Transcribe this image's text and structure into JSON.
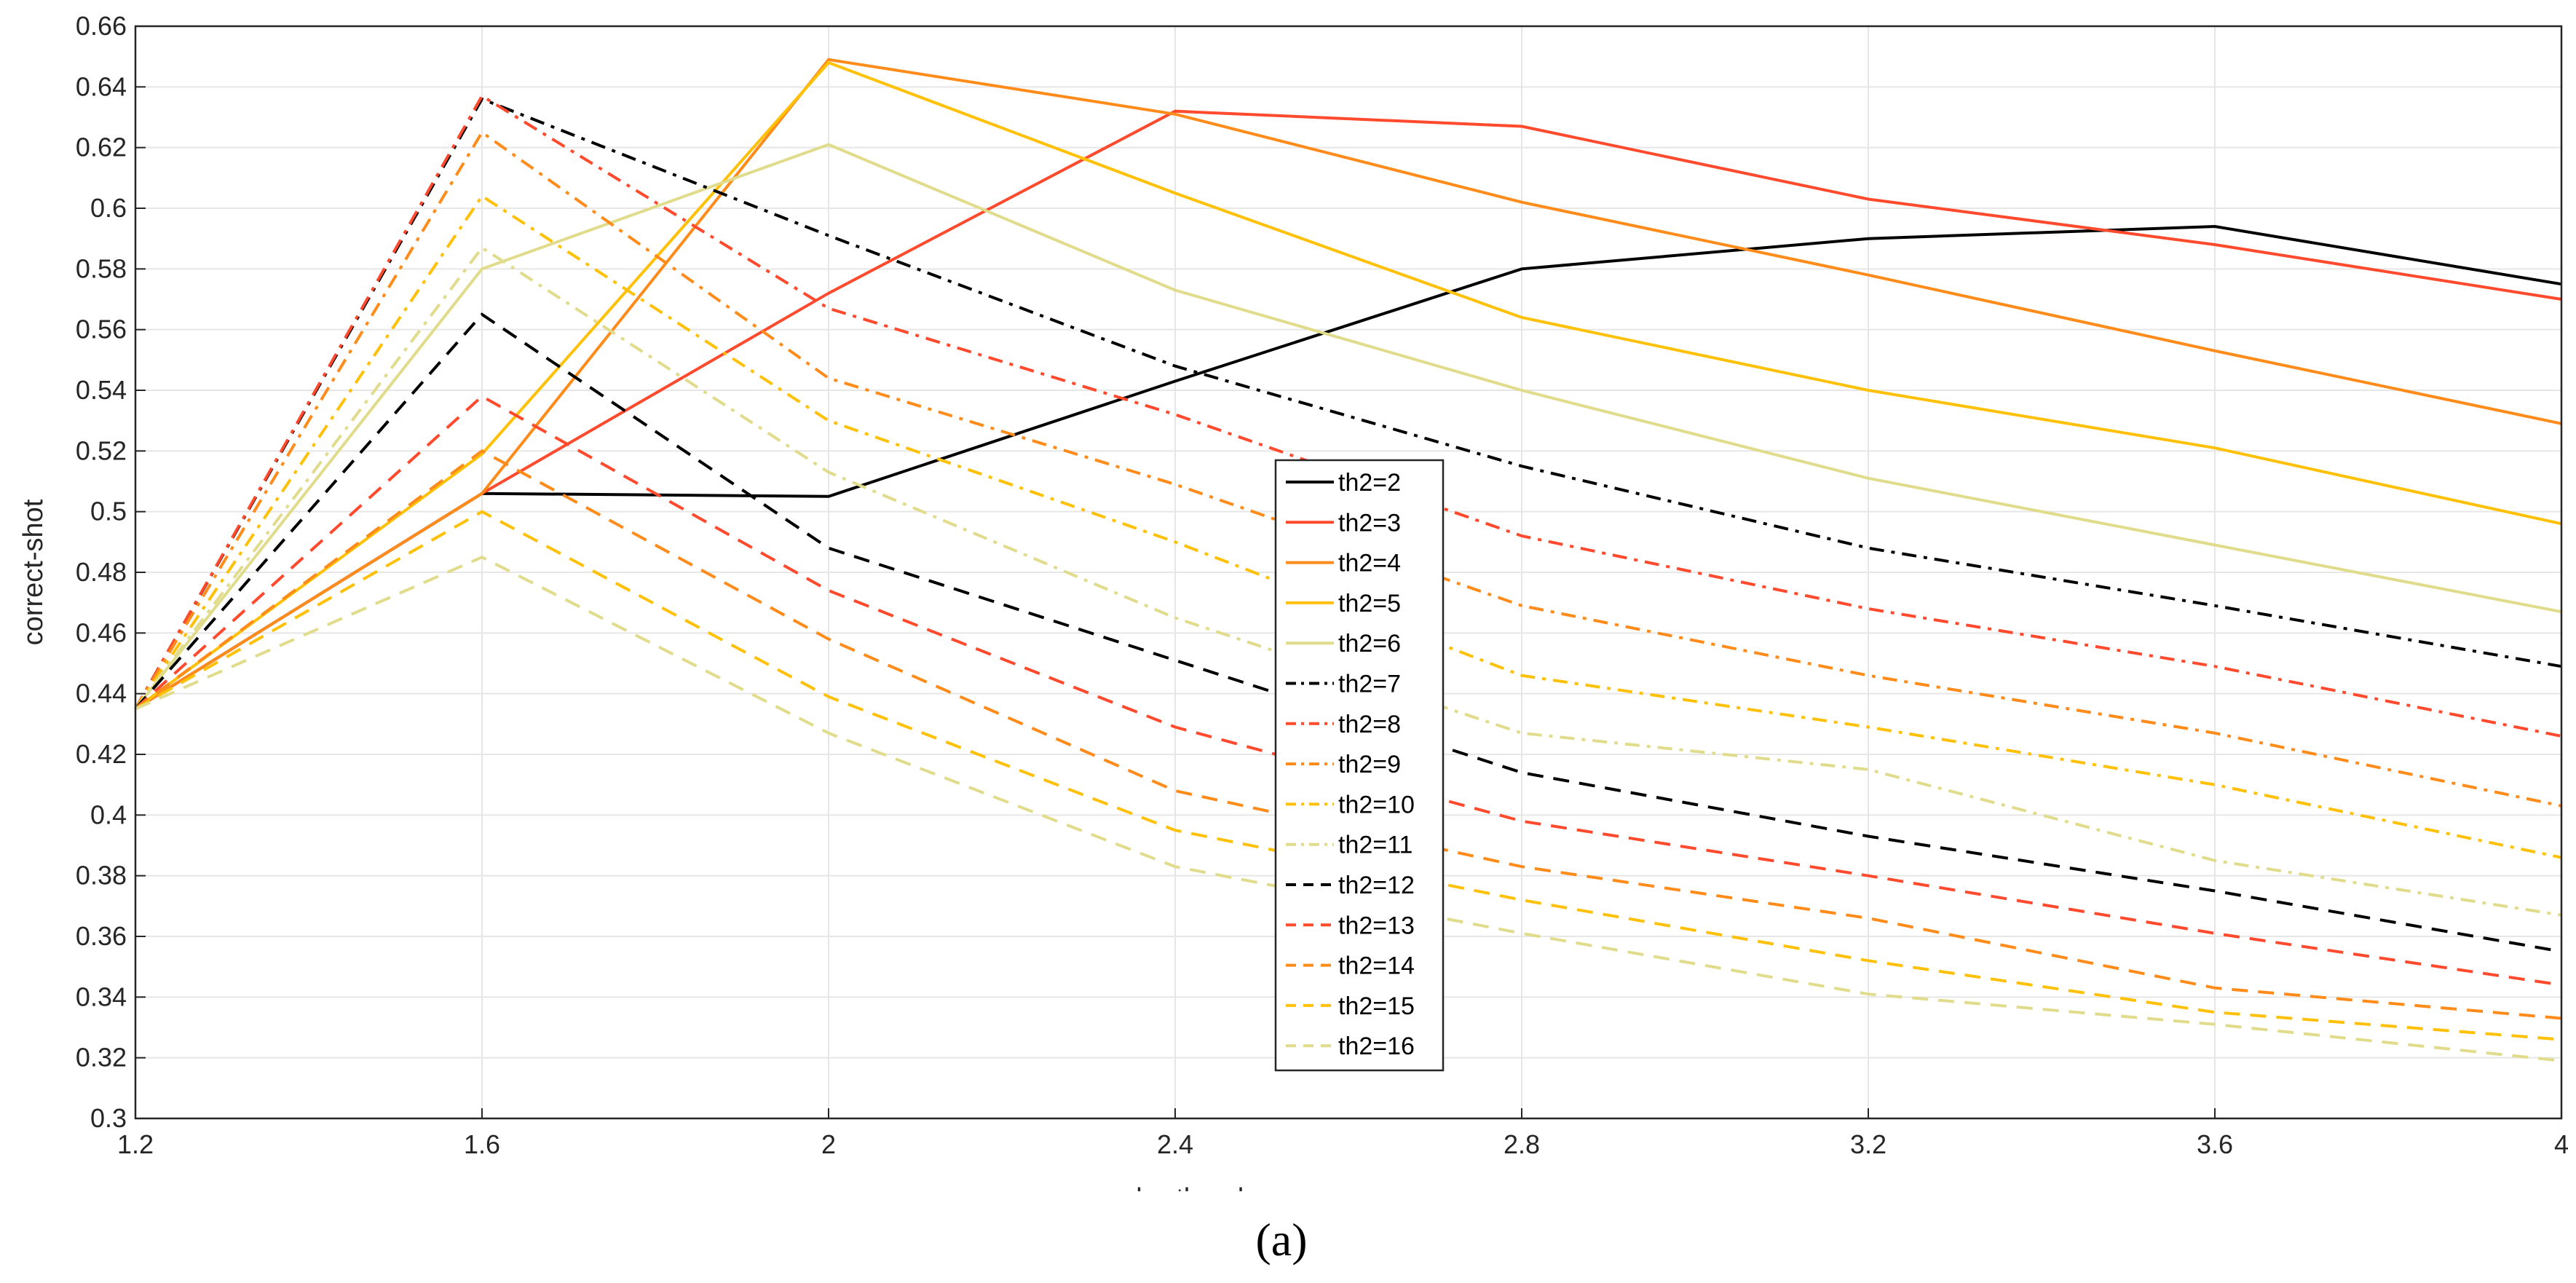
{
  "chart_data": {
    "type": "line",
    "title": "",
    "xlabel": "ube-thresh",
    "ylabel": "correct-shot",
    "caption": "(a)",
    "xlim": [
      1.2,
      4
    ],
    "ylim": [
      0.3,
      0.66
    ],
    "grid": true,
    "legend_position": "center",
    "x_ticks": [
      "1.2",
      "1.6",
      "2",
      "2.4",
      "2.8",
      "3.2",
      "3.6",
      "4"
    ],
    "y_ticks": [
      "0.3",
      "0.32",
      "0.34",
      "0.36",
      "0.38",
      "0.4",
      "0.42",
      "0.44",
      "0.46",
      "0.48",
      "0.5",
      "0.52",
      "0.54",
      "0.56",
      "0.58",
      "0.6",
      "0.62",
      "0.64",
      "0.66"
    ],
    "x": [
      1.2,
      1.6,
      2.0,
      2.4,
      2.8,
      3.2,
      3.6,
      4.0
    ],
    "series": [
      {
        "name": "th2=2",
        "color": "#000000",
        "style": "solid",
        "values": [
          0.435,
          0.506,
          0.505,
          0.543,
          0.58,
          0.59,
          0.594,
          0.575
        ]
      },
      {
        "name": "th2=3",
        "color": "#ff4a2d",
        "style": "solid",
        "values": [
          0.435,
          0.506,
          0.572,
          0.632,
          0.627,
          0.603,
          0.588,
          0.57
        ]
      },
      {
        "name": "th2=4",
        "color": "#ff8c1a",
        "style": "solid",
        "values": [
          0.435,
          0.506,
          0.649,
          0.631,
          0.602,
          0.578,
          0.553,
          0.529
        ]
      },
      {
        "name": "th2=5",
        "color": "#ffc107",
        "style": "solid",
        "values": [
          0.435,
          0.519,
          0.648,
          0.605,
          0.564,
          0.54,
          0.521,
          0.496
        ]
      },
      {
        "name": "th2=6",
        "color": "#e0dc8c",
        "style": "solid",
        "values": [
          0.435,
          0.58,
          0.621,
          0.573,
          0.54,
          0.511,
          0.489,
          0.467
        ]
      },
      {
        "name": "th2=7",
        "color": "#000000",
        "style": "dashdot",
        "values": [
          0.435,
          0.636,
          0.591,
          0.548,
          0.515,
          0.488,
          0.469,
          0.449
        ]
      },
      {
        "name": "th2=8",
        "color": "#ff4a2d",
        "style": "dashdot",
        "values": [
          0.435,
          0.637,
          0.567,
          0.532,
          0.492,
          0.468,
          0.449,
          0.426
        ]
      },
      {
        "name": "th2=9",
        "color": "#ff8c1a",
        "style": "dashdot",
        "values": [
          0.435,
          0.625,
          0.544,
          0.509,
          0.469,
          0.446,
          0.427,
          0.403
        ]
      },
      {
        "name": "th2=10",
        "color": "#ffc107",
        "style": "dashdot",
        "values": [
          0.435,
          0.604,
          0.53,
          0.49,
          0.446,
          0.429,
          0.41,
          0.386
        ]
      },
      {
        "name": "th2=11",
        "color": "#e0dc8c",
        "style": "dashdot",
        "values": [
          0.435,
          0.587,
          0.513,
          0.465,
          0.427,
          0.415,
          0.385,
          0.367
        ]
      },
      {
        "name": "th2=12",
        "color": "#000000",
        "style": "dashed",
        "values": [
          0.435,
          0.565,
          0.488,
          0.451,
          0.414,
          0.393,
          0.375,
          0.355
        ]
      },
      {
        "name": "th2=13",
        "color": "#ff4a2d",
        "style": "dashed",
        "values": [
          0.435,
          0.538,
          0.474,
          0.429,
          0.398,
          0.38,
          0.361,
          0.344
        ]
      },
      {
        "name": "th2=14",
        "color": "#ff8c1a",
        "style": "dashed",
        "values": [
          0.435,
          0.52,
          0.458,
          0.408,
          0.383,
          0.366,
          0.343,
          0.333
        ]
      },
      {
        "name": "th2=15",
        "color": "#ffc107",
        "style": "dashed",
        "values": [
          0.435,
          0.5,
          0.439,
          0.395,
          0.372,
          0.352,
          0.335,
          0.326
        ]
      },
      {
        "name": "th2=16",
        "color": "#e0dc8c",
        "style": "dashed",
        "values": [
          0.435,
          0.485,
          0.427,
          0.383,
          0.361,
          0.341,
          0.331,
          0.319
        ]
      }
    ]
  }
}
